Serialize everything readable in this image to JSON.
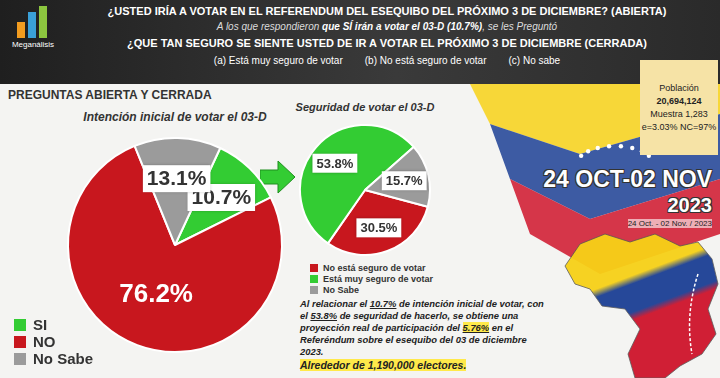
{
  "header": {
    "logo": "Meganálisis",
    "title": "¿USTED IRÍA A VOTAR EN EL REFERENDUM DEL ESEQUIBO DEL PRÓXIMO 3 DE DICIEMBRE? (ABIERTA)",
    "subtitle": [
      "A los que respondieron ",
      "que SÍ irán a votar el 03-D (10.7%)",
      ", se les Preguntó"
    ],
    "question": "¿QUE TAN SEGURO SE SIENTE USTED DE IR A VOTAR EL PRÓXIMO 3 DE DICIEMBRE (CERRADA)",
    "options": [
      "(a) Está muy seguro de votar",
      "(b) No está seguro de votar",
      "(c) No sabe"
    ]
  },
  "section_title": "PREGUNTAS ABIERTA Y CERRADA",
  "chart_data": [
    {
      "type": "pie",
      "title": "Intención inicial de votar el 03-D",
      "categories": [
        "SI",
        "NO",
        "No Sabe"
      ],
      "values": [
        10.7,
        76.2,
        13.1
      ],
      "value_labels": [
        "10.7%",
        "76.2%",
        "13.1%"
      ],
      "colors": [
        "#33cc33",
        "#c8171e",
        "#9b9b9b"
      ],
      "data_labels": true,
      "legend": "left"
    },
    {
      "type": "pie",
      "title": "Seguridad de votar el 03-D",
      "categories": [
        "No está seguro de votar",
        "Está muy seguro de votar",
        "No Sabe"
      ],
      "values": [
        30.5,
        53.8,
        15.7
      ],
      "value_labels": [
        "30.5%",
        "53.8%",
        "15.7%"
      ],
      "colors": [
        "#c8171e",
        "#33cc33",
        "#9b9b9b"
      ],
      "data_labels": true,
      "legend": "bottom"
    }
  ],
  "note": {
    "segments": [
      "Al relacionar el ",
      "10.7%",
      " de intención inicial de votar, con el ",
      "53.8%",
      " de seguridad de hacerlo, se obtiene una proyección real de participación del ",
      "5.76%",
      " en el Referéndum sobre el esequibo del 03 de diciembre 2023."
    ],
    "highlight": "Alrededor de 1,190,000 electores."
  },
  "study": {
    "population_label": "Población",
    "population": "20,694,124",
    "sample": "Muestra 1,283",
    "error": "e=3.03% NC=97%"
  },
  "dates": {
    "banner": "24 OCT-02 NOV",
    "year": "2023",
    "caption": "24 Oct. - 02 Nov. / 2023"
  }
}
